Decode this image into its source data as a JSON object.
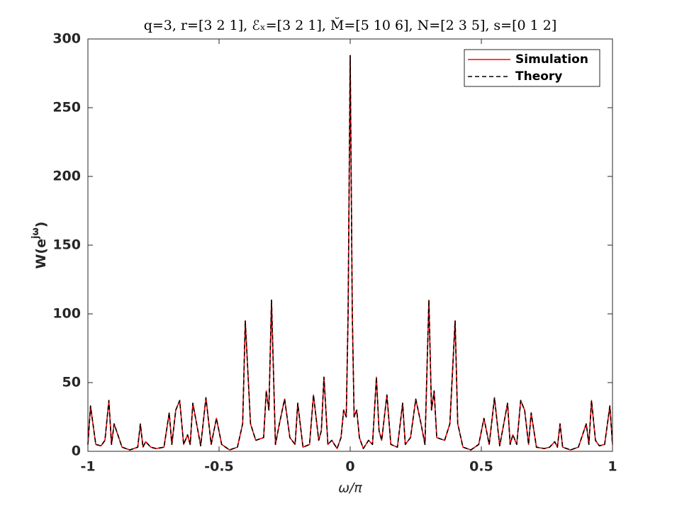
{
  "chart_data": {
    "type": "line",
    "title": "q=3, r=[3 2 1], ℰₓ=[3 2 1], M̆=[5 10 6], N=[2 3 5], s=[0 1 2]",
    "xlabel": "ω/π",
    "ylabel": [
      "W(e",
      "jω",
      ")"
    ],
    "x": [
      -1,
      -0.99,
      -0.97,
      -0.95,
      -0.935,
      -0.92,
      -0.91,
      -0.9,
      -0.87,
      -0.84,
      -0.81,
      -0.8,
      -0.79,
      -0.78,
      -0.76,
      -0.74,
      -0.71,
      -0.69,
      -0.68,
      -0.665,
      -0.65,
      -0.635,
      -0.62,
      -0.61,
      -0.6,
      -0.57,
      -0.55,
      -0.53,
      -0.51,
      -0.49,
      -0.46,
      -0.43,
      -0.41,
      -0.4,
      -0.38,
      -0.36,
      -0.33,
      -0.32,
      -0.31,
      -0.3,
      -0.285,
      -0.27,
      -0.25,
      -0.23,
      -0.21,
      -0.2,
      -0.18,
      -0.155,
      -0.14,
      -0.12,
      -0.11,
      -0.1,
      -0.085,
      -0.07,
      -0.05,
      -0.035,
      -0.025,
      -0.015,
      -0.008,
      0,
      0.008,
      0.015,
      0.025,
      0.035,
      0.05,
      0.07,
      0.085,
      0.1,
      0.11,
      0.12,
      0.14,
      0.155,
      0.18,
      0.2,
      0.21,
      0.23,
      0.25,
      0.27,
      0.285,
      0.3,
      0.31,
      0.32,
      0.33,
      0.36,
      0.38,
      0.4,
      0.41,
      0.43,
      0.46,
      0.49,
      0.51,
      0.53,
      0.55,
      0.57,
      0.6,
      0.61,
      0.62,
      0.635,
      0.65,
      0.665,
      0.68,
      0.69,
      0.71,
      0.74,
      0.76,
      0.78,
      0.79,
      0.8,
      0.81,
      0.84,
      0.87,
      0.9,
      0.91,
      0.92,
      0.935,
      0.95,
      0.97,
      0.99,
      1
    ],
    "series": [
      {
        "name": "Simulation",
        "color": "#ff0000",
        "dash": false,
        "values": [
          5,
          33,
          5,
          4,
          8,
          37,
          5,
          20,
          3,
          1,
          3,
          20,
          3,
          7,
          3,
          2,
          3,
          28,
          5,
          30,
          37,
          5,
          12,
          5,
          35,
          4,
          39,
          5,
          24,
          5,
          1,
          3,
          20,
          95,
          20,
          8,
          10,
          44,
          30,
          110,
          5,
          20,
          38,
          10,
          5,
          35,
          3,
          5,
          41,
          8,
          15,
          54,
          5,
          8,
          2,
          10,
          30,
          25,
          100,
          288,
          100,
          25,
          30,
          10,
          2,
          8,
          5,
          54,
          15,
          8,
          41,
          5,
          3,
          35,
          5,
          10,
          38,
          20,
          5,
          110,
          30,
          44,
          10,
          8,
          20,
          95,
          20,
          3,
          1,
          5,
          24,
          5,
          39,
          4,
          35,
          5,
          12,
          5,
          37,
          30,
          5,
          28,
          3,
          2,
          3,
          7,
          3,
          20,
          3,
          1,
          3,
          20,
          5,
          37,
          8,
          4,
          5,
          33,
          5
        ]
      },
      {
        "name": "Theory",
        "color": "#000000",
        "dash": true,
        "values": [
          5,
          33,
          5,
          4,
          8,
          37,
          5,
          20,
          3,
          1,
          3,
          20,
          3,
          7,
          3,
          2,
          3,
          28,
          5,
          30,
          37,
          5,
          12,
          5,
          35,
          4,
          39,
          5,
          24,
          5,
          1,
          3,
          20,
          95,
          20,
          8,
          10,
          44,
          30,
          110,
          5,
          20,
          38,
          10,
          5,
          35,
          3,
          5,
          41,
          8,
          15,
          54,
          5,
          8,
          2,
          10,
          30,
          25,
          100,
          288,
          100,
          25,
          30,
          10,
          2,
          8,
          5,
          54,
          15,
          8,
          41,
          5,
          3,
          35,
          5,
          10,
          38,
          20,
          5,
          110,
          30,
          44,
          10,
          8,
          20,
          95,
          20,
          3,
          1,
          5,
          24,
          5,
          39,
          4,
          35,
          5,
          12,
          5,
          37,
          30,
          5,
          28,
          3,
          2,
          3,
          7,
          3,
          20,
          3,
          1,
          3,
          20,
          5,
          37,
          8,
          4,
          5,
          33,
          5
        ]
      }
    ],
    "xlim": [
      -1,
      1
    ],
    "xticks": [
      -1,
      -0.5,
      0,
      0.5,
      1
    ],
    "ylim": [
      0,
      300
    ],
    "yticks": [
      0,
      50,
      100,
      150,
      200,
      250,
      300
    ],
    "grid": false,
    "legend": "top-right"
  }
}
